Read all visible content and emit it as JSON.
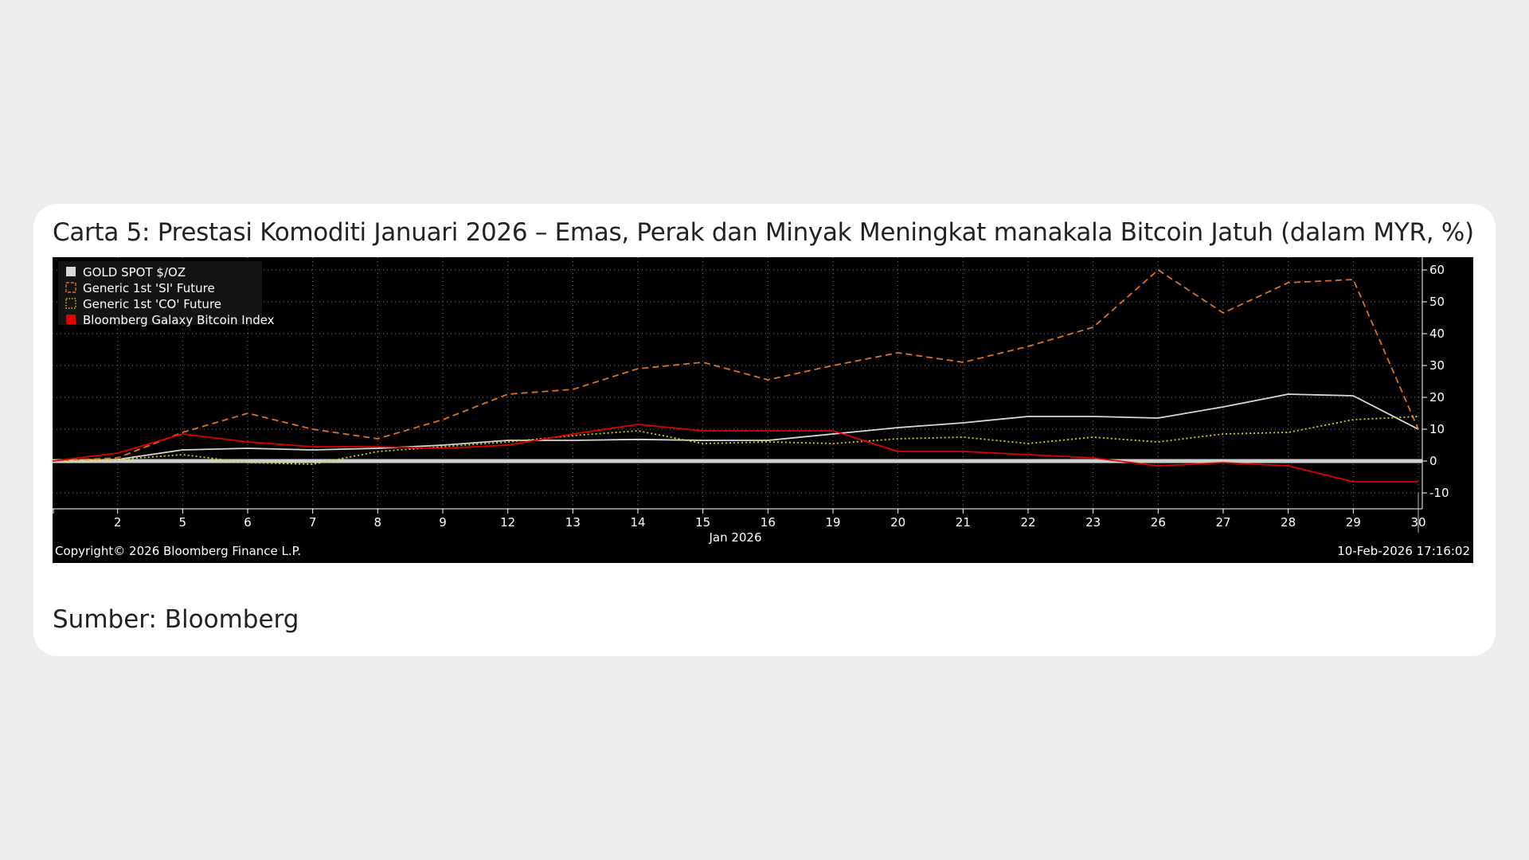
{
  "card": {
    "title": "Carta 5: Prestasi Komoditi Januari 2026 – Emas, Perak dan Minyak Meningkat manakala Bitcoin Jatuh (dalam MYR, %)",
    "source": "Sumber: Bloomberg"
  },
  "chart_data": {
    "type": "line",
    "x": [
      "1",
      "2",
      "5",
      "6",
      "7",
      "8",
      "9",
      "12",
      "13",
      "14",
      "15",
      "16",
      "19",
      "20",
      "21",
      "22",
      "23",
      "26",
      "27",
      "28",
      "29",
      "30"
    ],
    "x_tick_labels": [
      "2",
      "5",
      "6",
      "7",
      "8",
      "9",
      "12",
      "13",
      "14",
      "15",
      "16",
      "19",
      "20",
      "21",
      "22",
      "23",
      "26",
      "27",
      "28",
      "29",
      "30"
    ],
    "xlabel": "Jan 2026",
    "ylim": [
      -15,
      64
    ],
    "y_ticks": [
      -10,
      0,
      10,
      20,
      30,
      40,
      50,
      60
    ],
    "y_axis_side": "right",
    "grid": true,
    "legend_placement": "top-left",
    "series": [
      {
        "name": "GOLD SPOT $/OZ",
        "color": "#d9d9d9",
        "style": "solid",
        "values": [
          0,
          0.5,
          3.5,
          4,
          3.5,
          4,
          5,
          6.5,
          6.5,
          6.8,
          6.5,
          6.5,
          8.5,
          10.5,
          12,
          14,
          14,
          13.5,
          17,
          21,
          20.5,
          10
        ]
      },
      {
        "name": "Generic 1st 'SI' Future",
        "color": "#e0711e",
        "style": "dashed",
        "values": [
          0,
          1,
          9,
          15,
          10,
          7,
          13,
          21,
          22.5,
          29,
          31,
          25.5,
          30,
          34,
          31,
          36,
          42,
          60,
          46.5,
          56,
          57,
          10
        ]
      },
      {
        "name": "Generic 1st 'CO' Future",
        "color": "#d8d000",
        "style": "dotted",
        "values": [
          0,
          0.5,
          2,
          -0.5,
          -1,
          3,
          4.5,
          6,
          8,
          9.5,
          5.5,
          6,
          5.5,
          7,
          7.5,
          5.5,
          7.5,
          6,
          8.5,
          9,
          13,
          14
        ]
      },
      {
        "name": "Bloomberg Galaxy Bitcoin Index",
        "color": "#e00000",
        "style": "solid",
        "values": [
          0,
          2.5,
          8.5,
          6,
          4.5,
          4.5,
          4,
          5,
          8.5,
          11.5,
          9.5,
          9.5,
          9.5,
          3,
          3,
          2,
          1,
          -1.5,
          -0.5,
          -1.5,
          -6.5,
          -6.5
        ]
      }
    ]
  },
  "footer": {
    "copyright": "Copyright© 2026 Bloomberg Finance L.P.",
    "timestamp": "10-Feb-2026 17:16:02"
  },
  "colors": {
    "page_background": "#eeedeb",
    "card_background": "#ffffff",
    "chart_background": "#000000",
    "zero_line": "#cfcfcf"
  }
}
